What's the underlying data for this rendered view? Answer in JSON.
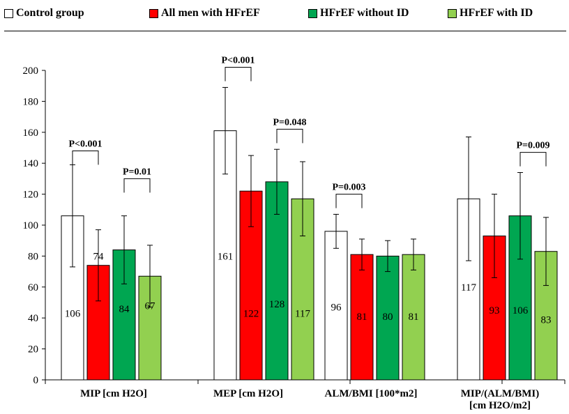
{
  "colors": {
    "control": "#ffffff",
    "all_hfref": "#ff0000",
    "without_id": "#00a651",
    "with_id": "#92d050"
  },
  "legend": {
    "items": [
      {
        "label": "Control group",
        "color_key": "control"
      },
      {
        "label": "All men with HFrEF",
        "color_key": "all_hfref"
      },
      {
        "label": "HFrEF without ID",
        "color_key": "without_id"
      },
      {
        "label": "HFrEF with ID",
        "color_key": "with_id"
      }
    ]
  },
  "chart_data": {
    "type": "bar",
    "title": "",
    "xlabel": "",
    "ylabel": "",
    "ylim": [
      0,
      200
    ],
    "yticks": [
      0,
      20,
      40,
      60,
      80,
      100,
      120,
      140,
      160,
      180,
      200
    ],
    "grid": false,
    "legend_position": "top",
    "categories": [
      [
        "MIP [cm H2O]"
      ],
      [
        "MEP [cm H2O]"
      ],
      [
        "ALM/BMI [100*m2]"
      ],
      [
        "MIP/(ALM/BMI)",
        "[cm H2O/m2]"
      ]
    ],
    "series": [
      {
        "name": "Control group",
        "color_key": "control",
        "values": [
          106,
          161,
          96,
          117
        ],
        "error_upper": [
          139,
          189,
          107,
          157
        ],
        "error_lower": [
          73,
          133,
          85,
          77
        ]
      },
      {
        "name": "All men with HFrEF",
        "color_key": "all_hfref",
        "values": [
          74,
          122,
          81,
          93
        ],
        "error_upper": [
          97,
          145,
          91,
          120
        ],
        "error_lower": [
          51,
          99,
          71,
          66
        ]
      },
      {
        "name": "HFrEF without ID",
        "color_key": "without_id",
        "values": [
          84,
          128,
          80,
          106
        ],
        "error_upper": [
          106,
          149,
          90,
          134
        ],
        "error_lower": [
          62,
          107,
          70,
          78
        ]
      },
      {
        "name": "HFrEF with ID",
        "color_key": "with_id",
        "values": [
          67,
          117,
          81,
          83
        ],
        "error_upper": [
          87,
          141,
          91,
          105
        ],
        "error_lower": [
          47,
          93,
          71,
          61
        ]
      }
    ],
    "value_label_y": [
      [
        43,
        80,
        46,
        48
      ],
      [
        80,
        43,
        49,
        43
      ],
      [
        47,
        41,
        41,
        41
      ],
      [
        60,
        45,
        45,
        39
      ]
    ],
    "annotations": [
      {
        "text": "P<0.001",
        "category": 0,
        "from_series": 0,
        "to_series": 1,
        "bracket_bottom": 139,
        "bracket_top": 148
      },
      {
        "text": "P=0.01",
        "category": 0,
        "from_series": 2,
        "to_series": 3,
        "bracket_bottom": 121,
        "bracket_top": 130
      },
      {
        "text": "P<0.001",
        "category": 1,
        "from_series": 0,
        "to_series": 1,
        "bracket_bottom": 193,
        "bracket_top": 202
      },
      {
        "text": "P=0.048",
        "category": 1,
        "from_series": 2,
        "to_series": 3,
        "bracket_bottom": 153,
        "bracket_top": 162
      },
      {
        "text": "P=0.003",
        "category": 2,
        "from_series": 0,
        "to_series": 1,
        "bracket_bottom": 111,
        "bracket_top": 120
      },
      {
        "text": "P=0.009",
        "category": 3,
        "from_series": 2,
        "to_series": 3,
        "bracket_bottom": 138,
        "bracket_top": 147
      }
    ]
  }
}
